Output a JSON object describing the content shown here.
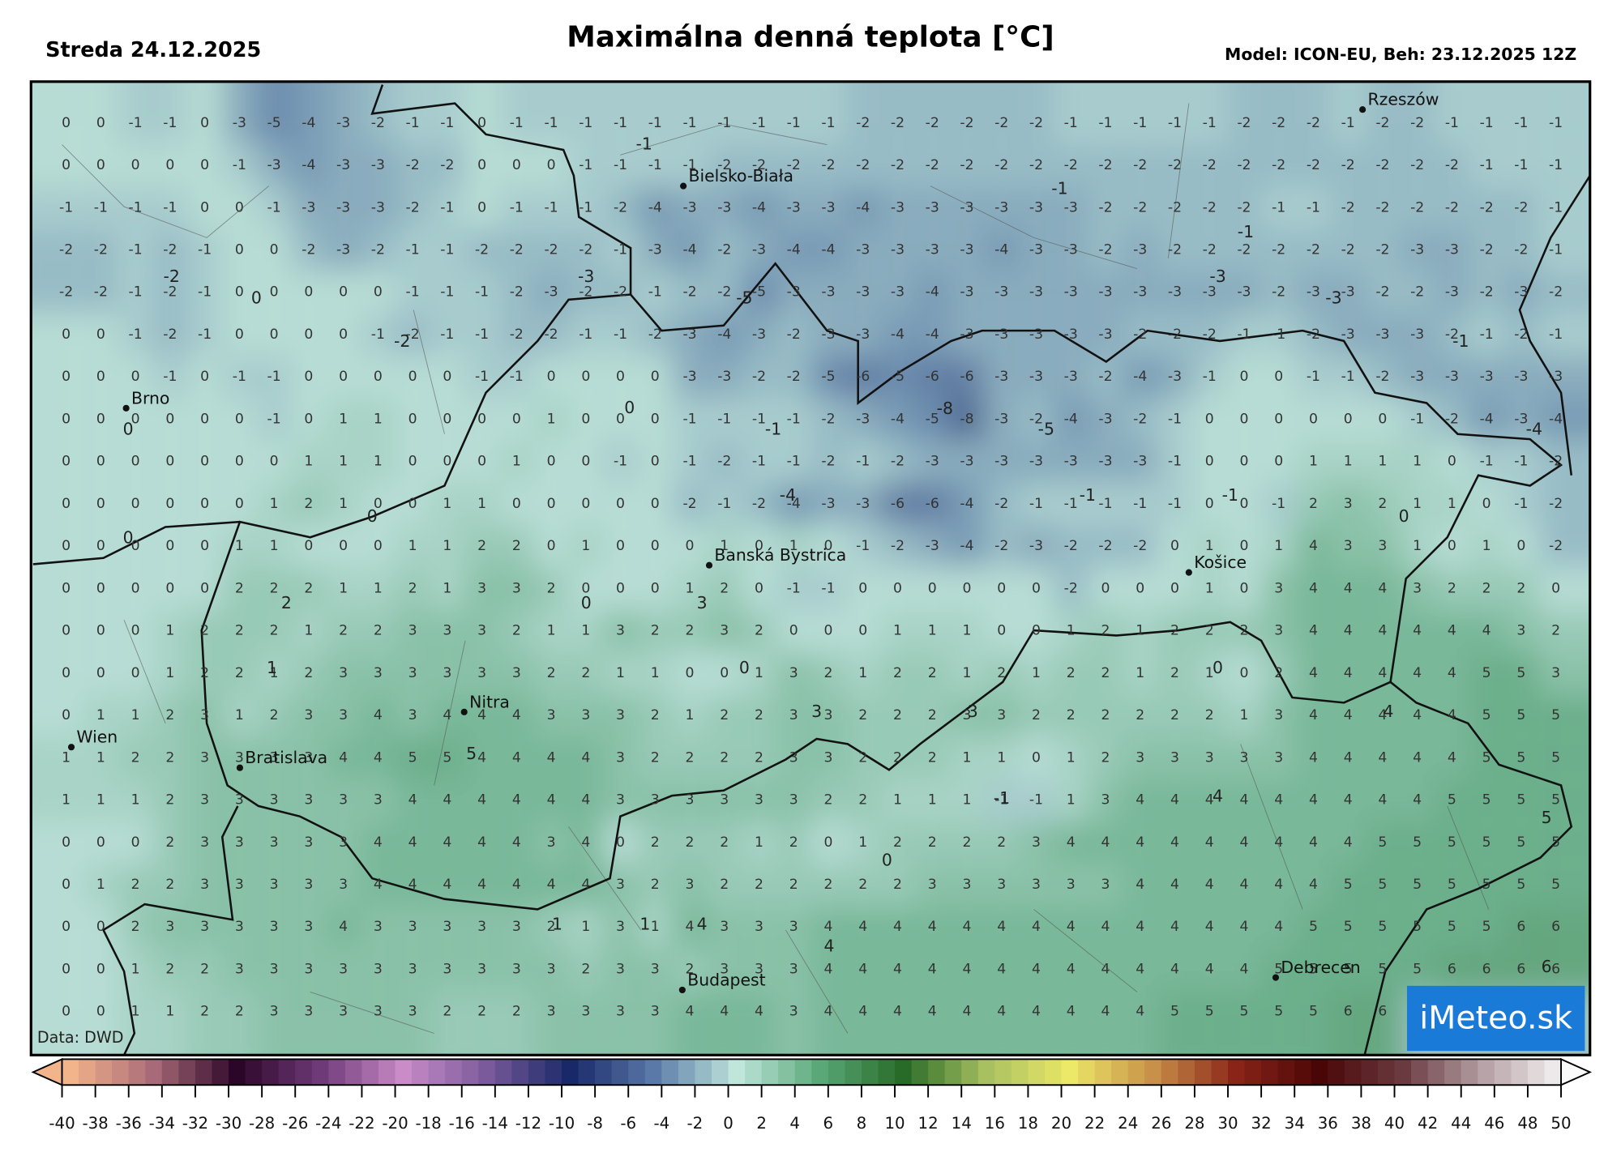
{
  "header": {
    "date": "Streda 24.12.2025",
    "title": "Maximálna denná teplota [°C]",
    "model": "Model: ICON-EU, Beh: 23.12.2025 12Z"
  },
  "map": {
    "rows": [
      [
        0,
        0,
        -1,
        -1,
        0,
        -3,
        -5,
        -4,
        -3,
        -2,
        -1,
        -1,
        0,
        -1,
        -1,
        -1,
        -1,
        -1,
        -1,
        -1,
        -1,
        -1,
        -1,
        -2,
        -2,
        -2,
        -2,
        -2,
        -2,
        -1,
        -1,
        -1,
        -1,
        -1,
        -2,
        -2,
        -2,
        -1,
        -2,
        -2,
        -1,
        -1,
        -1,
        -1
      ],
      [
        0,
        0,
        0,
        0,
        0,
        -1,
        -3,
        -4,
        -3,
        -3,
        -2,
        -2,
        0,
        0,
        0,
        -1,
        -1,
        -1,
        -1,
        -2,
        -2,
        -2,
        -2,
        -2,
        -2,
        -2,
        -2,
        -2,
        -2,
        -2,
        -2,
        -2,
        -2,
        -2,
        -2,
        -2,
        -2,
        -2,
        -2,
        -2,
        -2,
        -1,
        -1,
        -1
      ],
      [
        -1,
        -1,
        -1,
        -1,
        0,
        0,
        -1,
        -3,
        -3,
        -3,
        -2,
        -1,
        0,
        -1,
        -1,
        -1,
        -2,
        -4,
        -3,
        -3,
        -4,
        -3,
        -3,
        -4,
        -3,
        -3,
        -3,
        -3,
        -3,
        -3,
        -2,
        -2,
        -2,
        -2,
        -2,
        -1,
        -1,
        -2,
        -2,
        -2,
        -2,
        -2,
        -2,
        -1
      ],
      [
        -2,
        -2,
        -1,
        -2,
        -1,
        0,
        0,
        -2,
        -3,
        -2,
        -1,
        -1,
        -2,
        -2,
        -2,
        -2,
        -1,
        -3,
        -4,
        -2,
        -3,
        -4,
        -4,
        -3,
        -3,
        -3,
        -3,
        -4,
        -3,
        -3,
        -2,
        -3,
        -2,
        -2,
        -2,
        -2,
        -2,
        -2,
        -2,
        -3,
        -3,
        -2,
        -2,
        -1
      ],
      [
        -2,
        -2,
        -1,
        -2,
        -1,
        0,
        0,
        0,
        0,
        0,
        -1,
        -1,
        -1,
        -2,
        -3,
        -2,
        -2,
        -1,
        -2,
        -2,
        -5,
        -3,
        -3,
        -3,
        -3,
        -4,
        -3,
        -3,
        -3,
        -3,
        -3,
        -3,
        -3,
        -3,
        -3,
        -2,
        -3,
        -3,
        -2,
        -2,
        -3,
        -2,
        -3,
        -2
      ],
      [
        0,
        0,
        -1,
        -2,
        -1,
        0,
        0,
        0,
        0,
        -1,
        -2,
        -1,
        -1,
        -2,
        -2,
        -1,
        -1,
        -2,
        -3,
        -4,
        -3,
        -2,
        -3,
        -3,
        -4,
        -4,
        -3,
        -3,
        -3,
        -3,
        -3,
        -2,
        -2,
        -2,
        -1,
        -1,
        -2,
        -3,
        -3,
        -3,
        -2,
        -1,
        -2,
        -1
      ],
      [
        0,
        0,
        0,
        -1,
        0,
        -1,
        -1,
        0,
        0,
        0,
        0,
        0,
        -1,
        -1,
        0,
        0,
        0,
        0,
        -3,
        -3,
        -2,
        -2,
        -5,
        -6,
        -5,
        -6,
        -6,
        -3,
        -3,
        -3,
        -2,
        -4,
        -3,
        -1,
        0,
        0,
        -1,
        -1,
        -2,
        -3,
        -3,
        -3,
        -3,
        -3
      ],
      [
        0,
        0,
        0,
        0,
        0,
        0,
        -1,
        0,
        1,
        1,
        0,
        0,
        0,
        0,
        1,
        0,
        0,
        0,
        -1,
        -1,
        -1,
        -1,
        -2,
        -3,
        -4,
        -5,
        -8,
        -3,
        -2,
        -4,
        -3,
        -2,
        -1,
        0,
        0,
        0,
        0,
        0,
        0,
        -1,
        -2,
        -4,
        -3,
        -4
      ],
      [
        0,
        0,
        0,
        0,
        0,
        0,
        0,
        1,
        1,
        1,
        0,
        0,
        0,
        1,
        0,
        0,
        -1,
        0,
        -1,
        -2,
        -1,
        -1,
        -2,
        -1,
        -2,
        -3,
        -3,
        -3,
        -3,
        -3,
        -3,
        -3,
        -1,
        0,
        0,
        0,
        1,
        1,
        1,
        1,
        0,
        -1,
        -1,
        -2
      ],
      [
        0,
        0,
        0,
        0,
        0,
        0,
        1,
        2,
        1,
        0,
        0,
        1,
        1,
        0,
        0,
        0,
        0,
        0,
        -2,
        -1,
        -2,
        -4,
        -3,
        -3,
        -6,
        -6,
        -4,
        -2,
        -1,
        -1,
        -1,
        -1,
        -1,
        0,
        0,
        -1,
        2,
        3,
        2,
        1,
        1,
        0,
        -1,
        -2
      ],
      [
        0,
        0,
        0,
        0,
        0,
        1,
        1,
        0,
        0,
        0,
        1,
        1,
        2,
        2,
        0,
        1,
        0,
        0,
        0,
        1,
        0,
        1,
        0,
        -1,
        -2,
        -3,
        -4,
        -2,
        -3,
        -2,
        -2,
        -2,
        0,
        1,
        0,
        1,
        4,
        3,
        3,
        1,
        0,
        1,
        0,
        -2
      ],
      [
        0,
        0,
        0,
        0,
        0,
        2,
        2,
        2,
        1,
        1,
        2,
        1,
        3,
        3,
        2,
        0,
        0,
        0,
        1,
        2,
        0,
        -1,
        -1,
        0,
        0,
        0,
        0,
        0,
        0,
        -2,
        0,
        0,
        0,
        1,
        0,
        3,
        4,
        4,
        4,
        3,
        2,
        2,
        2,
        0
      ],
      [
        0,
        0,
        0,
        1,
        2,
        2,
        2,
        1,
        2,
        2,
        3,
        3,
        3,
        2,
        1,
        1,
        3,
        2,
        2,
        3,
        2,
        0,
        0,
        0,
        1,
        1,
        1,
        0,
        0,
        1,
        2,
        1,
        2,
        2,
        2,
        3,
        4,
        4,
        4,
        4,
        4,
        4,
        3,
        2
      ],
      [
        0,
        0,
        0,
        1,
        2,
        2,
        1,
        2,
        3,
        3,
        3,
        3,
        3,
        3,
        2,
        2,
        1,
        1,
        0,
        0,
        1,
        3,
        2,
        1,
        2,
        2,
        1,
        2,
        1,
        2,
        2,
        1,
        2,
        1,
        0,
        2,
        4,
        4,
        4,
        4,
        4,
        5,
        5,
        3
      ],
      [
        0,
        1,
        1,
        2,
        3,
        1,
        2,
        3,
        3,
        4,
        3,
        4,
        4,
        4,
        3,
        3,
        3,
        2,
        1,
        2,
        2,
        3,
        3,
        2,
        2,
        2,
        3,
        3,
        2,
        2,
        2,
        2,
        2,
        2,
        1,
        3,
        4,
        4,
        4,
        4,
        4,
        5,
        5,
        5
      ],
      [
        1,
        1,
        2,
        2,
        3,
        3,
        3,
        3,
        4,
        4,
        5,
        5,
        4,
        4,
        4,
        4,
        3,
        2,
        2,
        2,
        2,
        3,
        3,
        2,
        2,
        2,
        1,
        1,
        0,
        1,
        2,
        3,
        3,
        3,
        3,
        3,
        4,
        4,
        4,
        4,
        4,
        5,
        5,
        5
      ],
      [
        1,
        1,
        1,
        2,
        3,
        3,
        3,
        3,
        3,
        3,
        4,
        4,
        4,
        4,
        4,
        4,
        3,
        3,
        3,
        3,
        3,
        3,
        2,
        2,
        1,
        1,
        1,
        -1,
        -1,
        1,
        3,
        4,
        4,
        4,
        4,
        4,
        4,
        4,
        4,
        4,
        5,
        5,
        5,
        5
      ],
      [
        0,
        0,
        0,
        2,
        3,
        3,
        3,
        3,
        3,
        4,
        4,
        4,
        4,
        4,
        3,
        4,
        0,
        2,
        2,
        2,
        1,
        2,
        0,
        1,
        2,
        2,
        2,
        2,
        3,
        4,
        4,
        4,
        4,
        4,
        4,
        4,
        4,
        4,
        5,
        5,
        5,
        5,
        5,
        5
      ],
      [
        0,
        1,
        2,
        2,
        3,
        3,
        3,
        3,
        3,
        4,
        4,
        4,
        4,
        4,
        4,
        4,
        3,
        2,
        3,
        2,
        2,
        2,
        2,
        2,
        2,
        3,
        3,
        3,
        3,
        3,
        3,
        4,
        4,
        4,
        4,
        4,
        4,
        5,
        5,
        5,
        5,
        5,
        5,
        5
      ],
      [
        0,
        0,
        2,
        3,
        3,
        3,
        3,
        3,
        4,
        3,
        3,
        3,
        3,
        3,
        2,
        1,
        3,
        1,
        4,
        3,
        3,
        3,
        4,
        4,
        4,
        4,
        4,
        4,
        4,
        4,
        4,
        4,
        4,
        4,
        4,
        4,
        5,
        5,
        5,
        5,
        5,
        5,
        6,
        6
      ],
      [
        0,
        0,
        1,
        2,
        2,
        3,
        3,
        3,
        3,
        3,
        3,
        3,
        3,
        3,
        3,
        2,
        3,
        3,
        2,
        3,
        3,
        3,
        4,
        4,
        4,
        4,
        4,
        4,
        4,
        4,
        4,
        4,
        4,
        4,
        4,
        5,
        5,
        5,
        5,
        5,
        6,
        6,
        6,
        6
      ],
      [
        0,
        0,
        1,
        1,
        2,
        2,
        3,
        3,
        3,
        3,
        3,
        2,
        2,
        2,
        3,
        3,
        3,
        3,
        4,
        4,
        4,
        3,
        4,
        4,
        4,
        4,
        4,
        4,
        4,
        4,
        4,
        4,
        5,
        5,
        5,
        5,
        5,
        6,
        6,
        null,
        null,
        null,
        null,
        null
      ]
    ],
    "extremes": [
      -1,
      -1,
      -1,
      -2,
      0,
      -3,
      -3,
      -5,
      -3,
      -2,
      -1,
      0,
      0,
      -1,
      -8,
      -5,
      -4,
      -4,
      -1,
      -1,
      0,
      0,
      0,
      2,
      0,
      3,
      1,
      0,
      0,
      3,
      3,
      4,
      5,
      -1,
      4,
      5,
      0,
      1,
      1,
      4,
      4,
      6
    ],
    "cities": [
      "Rzeszów",
      "Bielsko-Biała",
      "Brno",
      "Banská Bystrica",
      "Košice",
      "Nitra",
      "Wien",
      "Bratislava",
      "Budapest",
      "Debrecen"
    ],
    "source": "Data: DWD",
    "logo": "iMeteo.sk"
  },
  "colorbar": {
    "ticks": [
      -40,
      -38,
      -36,
      -34,
      -32,
      -30,
      -28,
      -26,
      -24,
      -22,
      -20,
      -18,
      -16,
      -14,
      -12,
      -10,
      -8,
      -6,
      -4,
      -2,
      0,
      2,
      4,
      6,
      8,
      10,
      12,
      14,
      16,
      18,
      20,
      22,
      24,
      26,
      28,
      30,
      32,
      34,
      36,
      38,
      40,
      42,
      44,
      46,
      48,
      50
    ],
    "colors": [
      "#f2b48a",
      "#a86a78",
      "#2c0628",
      "#6e3a78",
      "#c98cc8",
      "#7a5a9a",
      "#182868",
      "#5a78a8",
      "#c0e6dc",
      "#5aa878",
      "#286a28",
      "#a8c060",
      "#ece868",
      "#c89048",
      "#8a2418",
      "#4a0606",
      "#6a3a40",
      "#b8a4a8",
      "#fafafa"
    ]
  }
}
